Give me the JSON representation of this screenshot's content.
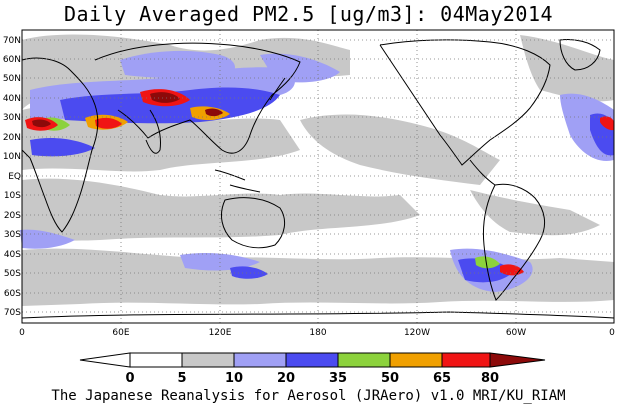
{
  "title": "Daily Averaged PM2.5 [ug/m3]: 04May2014",
  "footer": "The Japanese Reanalysis for Aerosol (JRAero) v1.0 MRI/KU_RIAM",
  "lat_labels": [
    "70N",
    "60N",
    "50N",
    "40N",
    "30N",
    "20N",
    "10N",
    "EQ",
    "10S",
    "20S",
    "30S",
    "40S",
    "50S",
    "60S",
    "70S"
  ],
  "lon_labels": [
    "0",
    "60E",
    "120E",
    "180",
    "120W",
    "60W",
    "0"
  ],
  "colorbar": {
    "levels": [
      "0",
      "5",
      "10",
      "20",
      "35",
      "50",
      "65",
      "80"
    ],
    "colors": [
      "#ffffff",
      "#c8c8c8",
      "#a0a0f5",
      "#4b4bf0",
      "#8cd23c",
      "#f0a000",
      "#f01414",
      "#8c0a0a"
    ]
  }
}
